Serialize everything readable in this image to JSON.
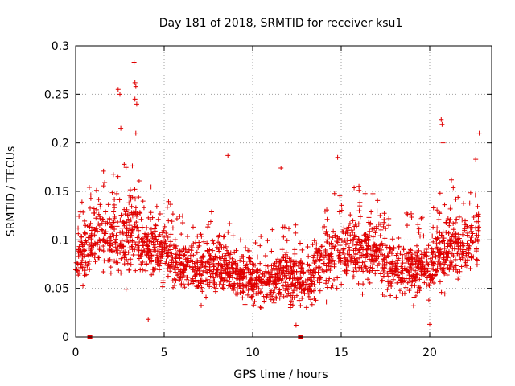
{
  "chart_data": {
    "type": "scatter",
    "title": "Day 181 of 2018, SRMTID for receiver ksu1",
    "xlabel": "GPS time / hours",
    "ylabel": "SRMTID / TECUs",
    "xlim": [
      0,
      23.5
    ],
    "ylim": [
      0,
      0.3
    ],
    "grid": true,
    "x_ticks": [
      "0",
      "5",
      "10",
      "15",
      "20"
    ],
    "x_tick_values": [
      0,
      5,
      10,
      15,
      20
    ],
    "y_ticks": [
      "0",
      "0.05",
      "0.1",
      "0.15",
      "0.2",
      "0.25",
      "0.3"
    ],
    "y_tick_values": [
      0,
      0.05,
      0.1,
      0.15,
      0.2,
      0.25,
      0.3
    ],
    "marker_color": "#e00000",
    "series": [
      {
        "name": "ksu1",
        "marker": "+",
        "envelope_x": [
          0,
          1,
          2,
          3,
          4,
          5,
          6,
          7,
          8,
          9,
          10,
          11,
          12,
          13,
          14,
          15,
          16,
          17,
          18,
          19,
          20,
          21,
          22,
          22.8
        ],
        "envelope_mean": [
          0.075,
          0.105,
          0.1,
          0.105,
          0.095,
          0.085,
          0.075,
          0.07,
          0.075,
          0.065,
          0.055,
          0.06,
          0.065,
          0.055,
          0.08,
          0.09,
          0.09,
          0.085,
          0.07,
          0.07,
          0.075,
          0.09,
          0.095,
          0.11
        ],
        "envelope_spread": [
          0.035,
          0.04,
          0.045,
          0.05,
          0.04,
          0.035,
          0.03,
          0.03,
          0.035,
          0.03,
          0.025,
          0.03,
          0.035,
          0.03,
          0.04,
          0.045,
          0.04,
          0.04,
          0.035,
          0.035,
          0.04,
          0.045,
          0.04,
          0.045
        ],
        "extreme_points": [
          {
            "x": 2.4,
            "y": 0.255
          },
          {
            "x": 2.5,
            "y": 0.25
          },
          {
            "x": 2.55,
            "y": 0.215
          },
          {
            "x": 3.3,
            "y": 0.283
          },
          {
            "x": 3.35,
            "y": 0.262
          },
          {
            "x": 3.4,
            "y": 0.258
          },
          {
            "x": 3.35,
            "y": 0.245
          },
          {
            "x": 3.45,
            "y": 0.24
          },
          {
            "x": 3.4,
            "y": 0.21
          },
          {
            "x": 8.6,
            "y": 0.187
          },
          {
            "x": 11.6,
            "y": 0.174
          },
          {
            "x": 14.8,
            "y": 0.185
          },
          {
            "x": 20.65,
            "y": 0.224
          },
          {
            "x": 20.7,
            "y": 0.219
          },
          {
            "x": 20.75,
            "y": 0.2
          },
          {
            "x": 22.8,
            "y": 0.21
          },
          {
            "x": 22.6,
            "y": 0.183
          },
          {
            "x": 20.0,
            "y": 0.013
          },
          {
            "x": 12.45,
            "y": 0.012
          },
          {
            "x": 4.1,
            "y": 0.018
          }
        ]
      }
    ],
    "gap_markers_x": [
      0.8,
      12.7
    ]
  }
}
